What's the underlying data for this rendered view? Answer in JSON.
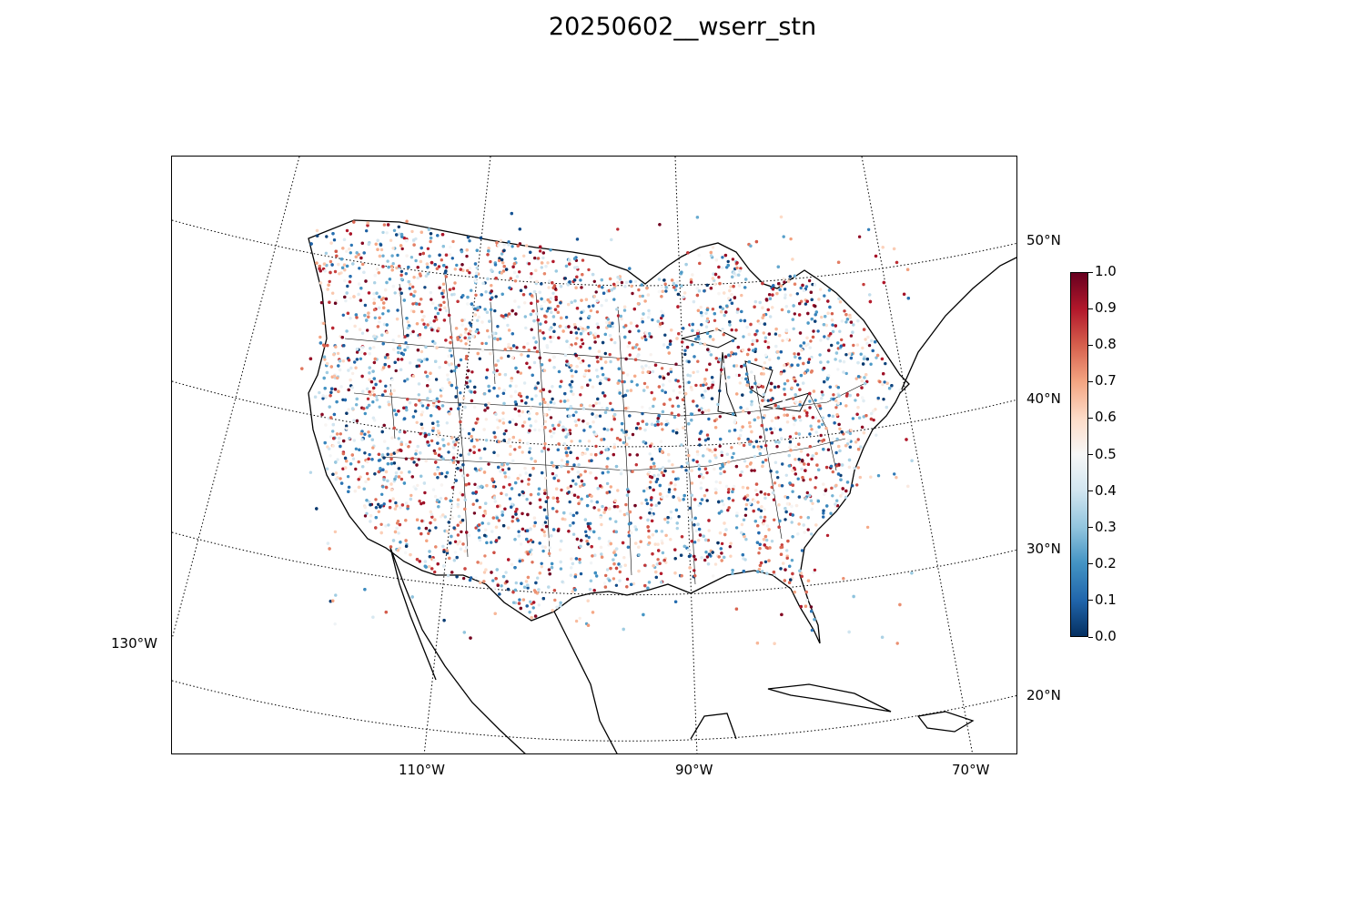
{
  "title": "20250602__wserr_stn",
  "map": {
    "projection": "lambert-conformal",
    "region": "continental-united-states",
    "layers": [
      "coastlines",
      "country-borders",
      "state-borders",
      "graticule"
    ],
    "graticule": {
      "style": "dotted"
    }
  },
  "axes": {
    "longitude_labels": [
      "130°W",
      "110°W",
      "90°W",
      "70°W"
    ],
    "latitude_labels": [
      "50°N",
      "40°N",
      "30°N",
      "20°N"
    ]
  },
  "colorbar": {
    "colormap": "RdBu_r",
    "min": 0.0,
    "max": 1.0,
    "tick_labels": [
      "0.0",
      "0.1",
      "0.2",
      "0.3",
      "0.4",
      "0.5",
      "0.6",
      "0.7",
      "0.8",
      "0.9",
      "1.0"
    ],
    "colors": {
      "low": "#053061",
      "mid": "#f7f7f7",
      "high": "#67001f"
    }
  },
  "chart_data": {
    "type": "scatter",
    "title": "20250602__wserr_stn",
    "value_range": [
      0,
      1
    ],
    "point_count_estimate": 6000
  }
}
